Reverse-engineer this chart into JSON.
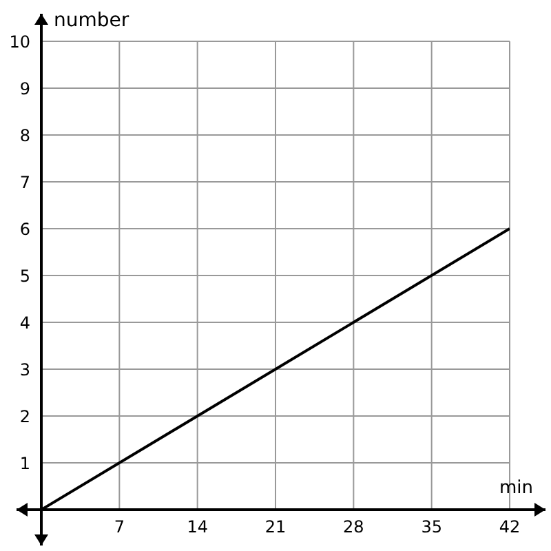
{
  "chart_data": {
    "type": "line",
    "xlabel": "min",
    "ylabel": "number",
    "x": [
      0,
      42
    ],
    "series": [
      {
        "color": "#000000",
        "values": [
          0,
          6
        ]
      }
    ],
    "xlim": [
      0,
      42
    ],
    "xticks": [
      7,
      14,
      21,
      28,
      35,
      42
    ],
    "ylim": [
      0,
      10
    ],
    "yticks": [
      1,
      2,
      3,
      4,
      5,
      6,
      7,
      8,
      9,
      10
    ],
    "grid": true,
    "marker": "none",
    "line_style": "solid"
  }
}
